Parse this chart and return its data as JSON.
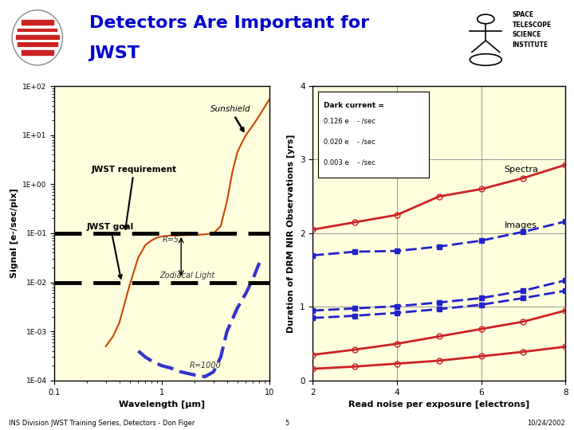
{
  "title_line1": "Detectors Are Important for",
  "title_line2": "JWST",
  "title_color": "#0000cc",
  "bg_color": "#ffffff",
  "plot_bg": "#ffffdd",
  "header_line_color": "#4477ee",
  "footer_text_left": "INS Division JWST Training Series, Detectors - Don Figer",
  "footer_text_center": "5",
  "footer_text_right": "10/24/2002",
  "left_plot": {
    "xlabel": "Wavelength [μm]",
    "ylabel": "Signal [e-/sec/pix]",
    "xmin": 0.1,
    "xmax": 10,
    "ymin": 0.0001,
    "ymax": 100.0,
    "req_line_y": 0.1,
    "goal_line_y": 0.01,
    "zodiacal_label": "Zodiacal Light",
    "sunshield_label": "Sunshield",
    "r5_label": "R=5",
    "r1000_label": "R=1000",
    "req_label": "JWST requirement",
    "goal_label": "JWST goal",
    "r5_x": [
      0.3,
      0.35,
      0.4,
      0.5,
      0.6,
      0.7,
      0.8,
      0.9,
      1.0,
      1.2,
      1.5,
      2.0,
      2.5,
      3.0,
      3.5,
      4.0,
      4.5,
      5.0,
      5.5,
      6.0,
      7.0,
      8.0,
      9.0,
      10.0
    ],
    "r5_y": [
      0.0005,
      0.0008,
      0.0015,
      0.009,
      0.032,
      0.058,
      0.072,
      0.082,
      0.086,
      0.09,
      0.091,
      0.093,
      0.095,
      0.1,
      0.14,
      0.45,
      1.8,
      4.5,
      7.0,
      10.0,
      16.0,
      25.0,
      38.0,
      55.0
    ],
    "r1000_x": [
      0.6,
      0.7,
      0.8,
      0.9,
      1.0,
      1.2,
      1.5,
      2.0,
      2.5,
      3.0,
      3.5,
      4.0,
      5.0,
      6.0,
      7.0,
      8.0
    ],
    "r1000_y": [
      0.0004,
      0.0003,
      0.00025,
      0.00022,
      0.0002,
      0.00018,
      0.00015,
      0.00013,
      0.00012,
      0.00015,
      0.0003,
      0.001,
      0.003,
      0.006,
      0.012,
      0.025
    ]
  },
  "right_plot": {
    "xlabel": "Read noise per exposure [electrons]",
    "ylabel": "Duration of DRM NIR Observations [yrs]",
    "xmin": 2,
    "xmax": 8,
    "ymin": 0,
    "ymax": 4,
    "xticks": [
      2,
      4,
      6,
      8
    ],
    "yticks": [
      0,
      1,
      2,
      3,
      4
    ],
    "read_noise_x": [
      2,
      3,
      4,
      5,
      6,
      7,
      8
    ],
    "spectra_high_y": [
      2.05,
      2.15,
      2.25,
      2.5,
      2.6,
      2.75,
      2.93
    ],
    "spectra_mid_y": [
      0.35,
      0.42,
      0.5,
      0.6,
      0.7,
      0.8,
      0.95
    ],
    "spectra_low_y": [
      0.16,
      0.19,
      0.23,
      0.27,
      0.33,
      0.39,
      0.46
    ],
    "images_high_y": [
      1.7,
      1.75,
      1.76,
      1.82,
      1.9,
      2.02,
      2.16
    ],
    "images_mid_y": [
      0.95,
      0.98,
      1.01,
      1.06,
      1.12,
      1.22,
      1.36
    ],
    "images_low_y": [
      0.85,
      0.88,
      0.92,
      0.97,
      1.03,
      1.12,
      1.22
    ],
    "legend_title": "Dark current =",
    "legend_entries": [
      "0.126 e    - /sec",
      "0.020 e    - /sec",
      "0.003 e    - /sec"
    ],
    "spectra_label": "Spectra",
    "images_label": "Images"
  }
}
